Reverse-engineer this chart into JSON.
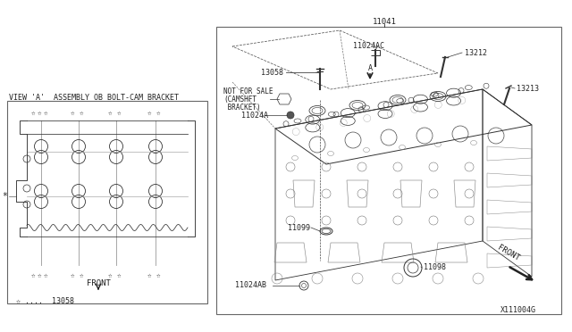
{
  "bg_color": "#ffffff",
  "line_color": "#333333",
  "text_color": "#222222",
  "fig_width": 6.4,
  "fig_height": 3.72,
  "diagram_code": "X111004G",
  "left_title": "VIEW 'A'  ASSEMBLY OB BOLT-CAM BRACKET",
  "left_legend_star": "☆ ....  13058",
  "left_front_label": "FRONT",
  "gray_line_color": "#aaaaaa"
}
